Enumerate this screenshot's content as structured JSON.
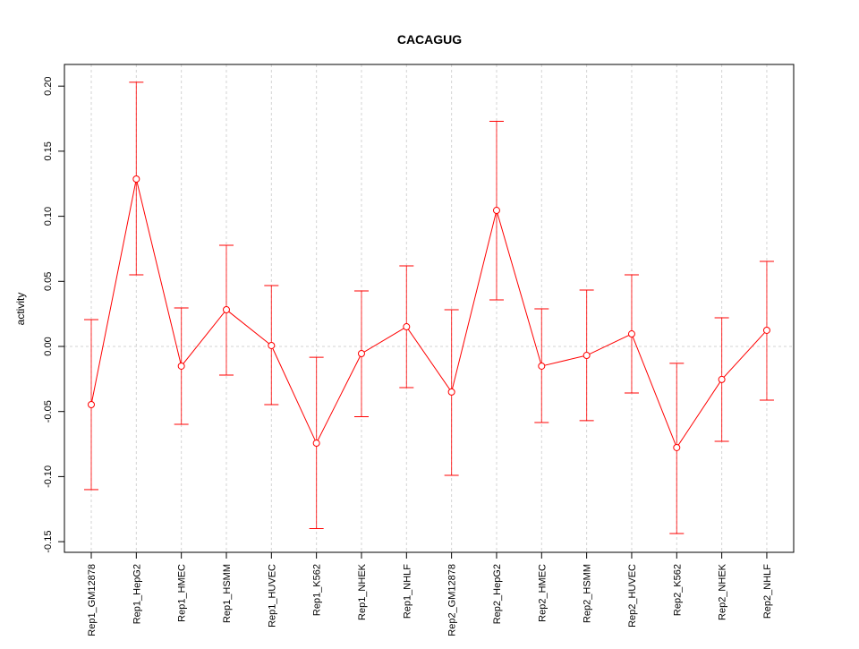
{
  "chart_data": {
    "type": "line",
    "title": "CACAGUG",
    "xlabel": "",
    "ylabel": "activity",
    "ylim": [
      -0.155,
      0.212
    ],
    "yticks": [
      -0.15,
      -0.1,
      -0.05,
      0.0,
      0.05,
      0.1,
      0.15,
      0.2
    ],
    "ytick_labels": [
      "-0.15",
      "-0.10",
      "-0.05",
      "0.00",
      "0.05",
      "0.10",
      "0.15",
      "0.20"
    ],
    "grid": "vertical at categories, horizontal at 0",
    "color": "#ff0000",
    "categories": [
      "Rep1_GM12878",
      "Rep1_HepG2",
      "Rep1_HMEC",
      "Rep1_HSMM",
      "Rep1_HUVEC",
      "Rep1_K562",
      "Rep1_NHEK",
      "Rep1_NHLF",
      "Rep2_GM12878",
      "Rep2_HepG2",
      "Rep2_HMEC",
      "Rep2_HSMM",
      "Rep2_HUVEC",
      "Rep2_K562",
      "Rep2_NHEK",
      "Rep2_NHLF"
    ],
    "values": [
      -0.0447,
      0.1286,
      -0.0151,
      0.0282,
      0.0007,
      -0.0743,
      -0.0055,
      0.0151,
      -0.035,
      0.1045,
      -0.0151,
      -0.0069,
      0.0096,
      -0.0777,
      -0.0254,
      0.0124
    ],
    "upper": [
      0.0206,
      0.203,
      0.0296,
      0.0777,
      0.0468,
      -0.0083,
      0.0426,
      0.0619,
      0.0282,
      0.173,
      0.0289,
      0.0433,
      0.055,
      -0.013,
      0.022,
      0.0653
    ],
    "lower": [
      -0.11,
      0.055,
      -0.0598,
      -0.022,
      -0.0447,
      -0.14,
      -0.054,
      -0.0316,
      -0.099,
      0.0358,
      -0.0585,
      -0.057,
      -0.0358,
      -0.1437,
      -0.0729,
      -0.0413
    ]
  }
}
